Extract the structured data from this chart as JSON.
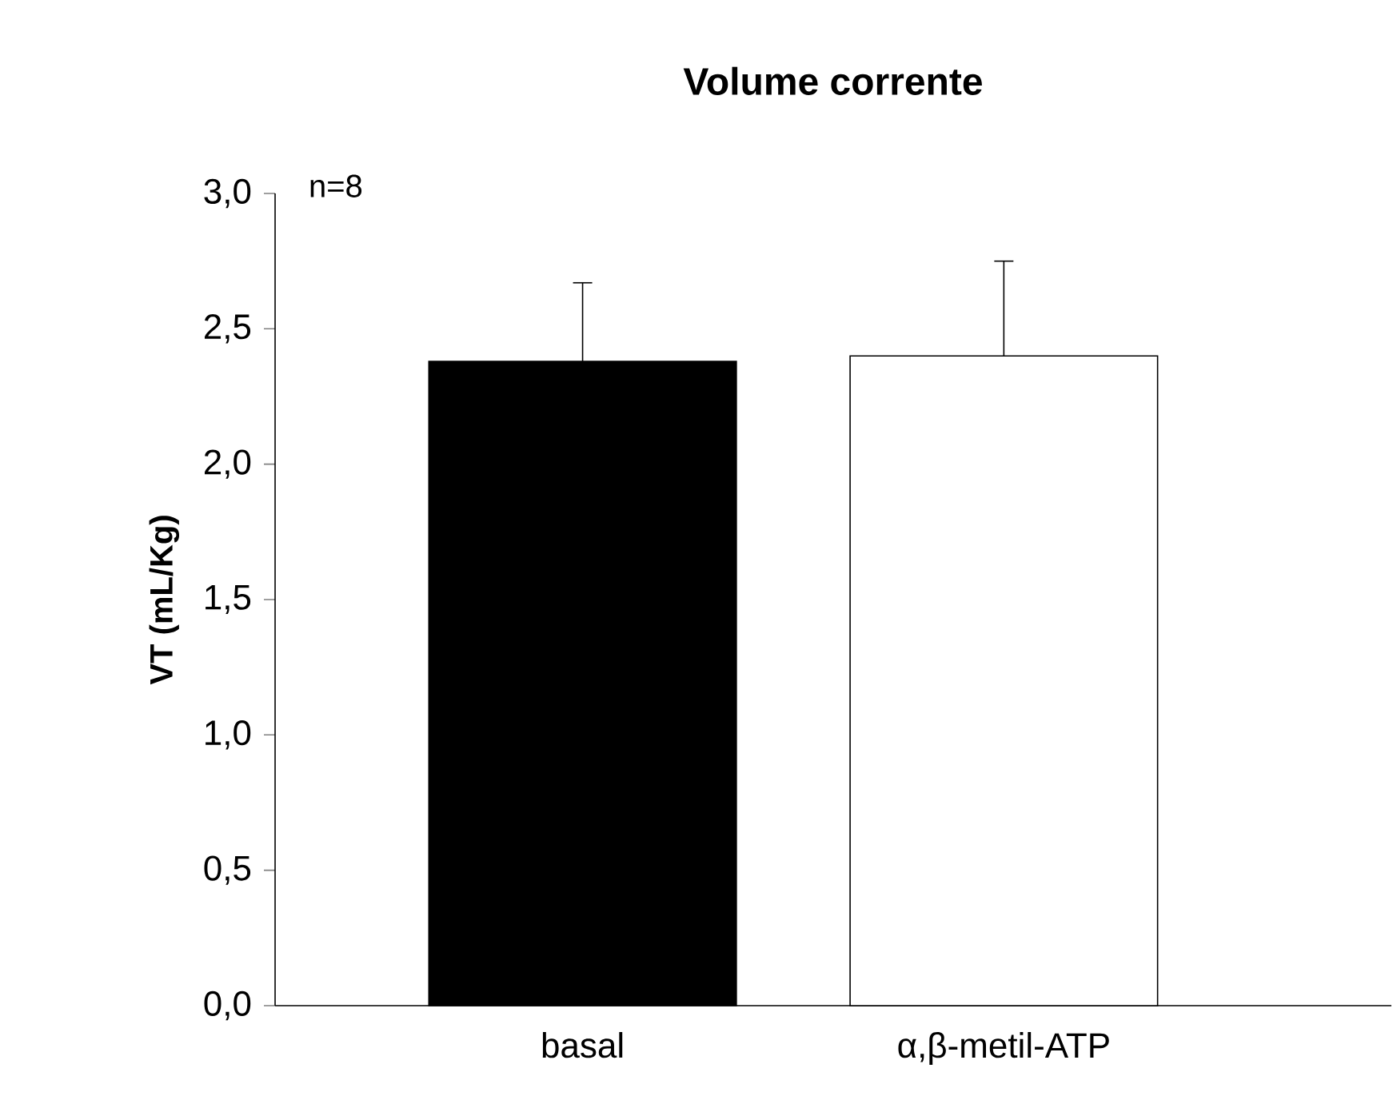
{
  "chart_data": {
    "type": "bar",
    "title": "**Volume corrente**",
    "ylabel": "**VT (mL/Kg)**",
    "categories": [
      "basal",
      "α,β-metil-ATP"
    ],
    "values": [
      2.38,
      2.4
    ],
    "colors": [
      "#000000",
      "#ffffff"
    ],
    "errors": [
      [
        2.38,
        2.67
      ],
      [
        2.4,
        2.75
      ]
    ],
    "ylim": [
      0,
      3
    ],
    "yticks": [
      {
        "value": 0,
        "label": "0,0"
      },
      {
        "value": 0.5,
        "label": "0,5"
      },
      {
        "value": 1,
        "label": "1,0"
      },
      {
        "value": 1.5,
        "label": "1,5"
      },
      {
        "value": 2,
        "label": "2,0"
      },
      {
        "value": 2.5,
        "label": "2,5"
      },
      {
        "value": 3,
        "label": "3,0"
      }
    ],
    "annotations": [
      "n=8"
    ],
    "grid": false
  }
}
